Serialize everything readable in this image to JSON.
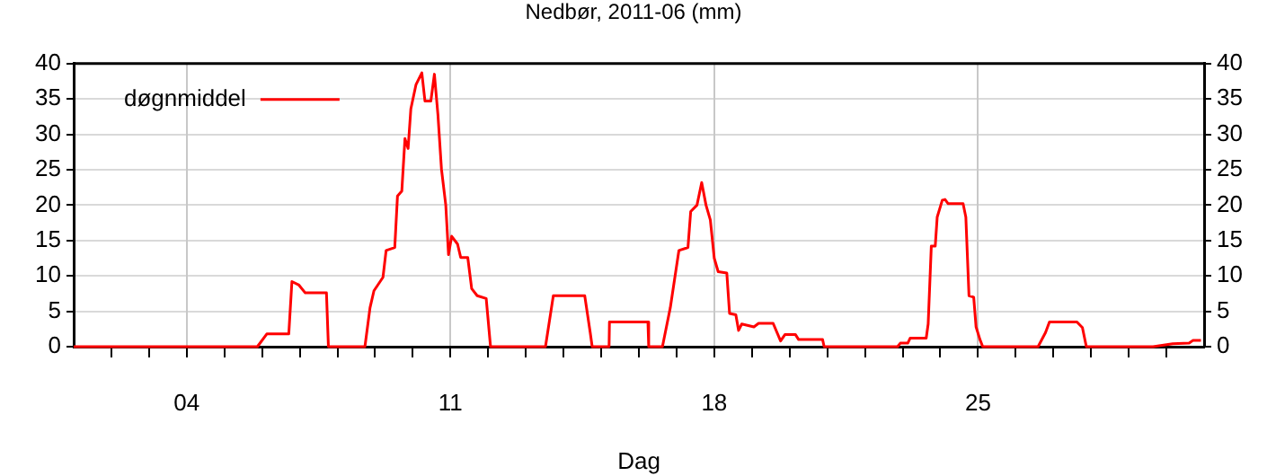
{
  "chart_data": {
    "type": "line",
    "title": "Nedbør, 2011-06 (mm)",
    "xlabel": "Dag",
    "legend": "top left",
    "grid": true,
    "marker": "none",
    "line_style": "solid",
    "xlim": [
      "2011-06-01",
      "2011-07-01"
    ],
    "xticks": [
      {
        "value": "2011-06-02",
        "label": null
      },
      {
        "value": "2011-06-03",
        "label": null
      },
      {
        "value": "2011-06-04",
        "label": "04"
      },
      {
        "value": "2011-06-05",
        "label": null
      },
      {
        "value": "2011-06-06",
        "label": null
      },
      {
        "value": "2011-06-07",
        "label": null
      },
      {
        "value": "2011-06-08",
        "label": null
      },
      {
        "value": "2011-06-09",
        "label": null
      },
      {
        "value": "2011-06-10",
        "label": null
      },
      {
        "value": "2011-06-11",
        "label": "11"
      },
      {
        "value": "2011-06-12",
        "label": null
      },
      {
        "value": "2011-06-13",
        "label": null
      },
      {
        "value": "2011-06-14",
        "label": null
      },
      {
        "value": "2011-06-15",
        "label": null
      },
      {
        "value": "2011-06-16",
        "label": null
      },
      {
        "value": "2011-06-17",
        "label": null
      },
      {
        "value": "2011-06-18",
        "label": "18"
      },
      {
        "value": "2011-06-19",
        "label": null
      },
      {
        "value": "2011-06-20",
        "label": null
      },
      {
        "value": "2011-06-21",
        "label": null
      },
      {
        "value": "2011-06-22",
        "label": null
      },
      {
        "value": "2011-06-23",
        "label": null
      },
      {
        "value": "2011-06-24",
        "label": null
      },
      {
        "value": "2011-06-25",
        "label": "25"
      },
      {
        "value": "2011-06-26",
        "label": null
      },
      {
        "value": "2011-06-27",
        "label": null
      },
      {
        "value": "2011-06-28",
        "label": null
      },
      {
        "value": "2011-06-29",
        "label": null
      },
      {
        "value": "2011-06-30",
        "label": null
      }
    ],
    "ylim": [
      0,
      40
    ],
    "yticks": [
      0,
      5,
      10,
      15,
      20,
      25,
      30,
      35,
      40
    ],
    "y2lim": [
      0,
      40
    ],
    "y2ticks": [
      0,
      5,
      10,
      15,
      20,
      25,
      30,
      35,
      40
    ],
    "x": [
      "2011-06-01T00:00",
      "2011-06-05T21:00",
      "2011-06-06T03:00",
      "2011-06-06T17:00",
      "2011-06-06T19:00",
      "2011-06-06T23:30",
      "2011-06-07T03:30",
      "2011-06-07T17:00",
      "2011-06-07T18:15",
      "2011-06-08T17:30",
      "2011-06-08T20:45",
      "2011-06-08T23:15",
      "2011-06-09T05:00",
      "2011-06-09T07:00",
      "2011-06-09T12:30",
      "2011-06-09T14:15",
      "2011-06-09T17:00",
      "2011-06-09T19:00",
      "2011-06-09T21:00",
      "2011-06-09T22:45",
      "2011-06-10T02:00",
      "2011-06-10T05:45",
      "2011-06-10T07:45",
      "2011-06-10T11:30",
      "2011-06-10T13:45",
      "2011-06-10T16:00",
      "2011-06-10T18:15",
      "2011-06-10T21:00",
      "2011-06-10T22:45",
      "2011-06-11T00:45",
      "2011-06-11T04:30",
      "2011-06-11T06:30",
      "2011-06-11T11:00",
      "2011-06-11T13:30",
      "2011-06-11T17:00",
      "2011-06-11T22:45",
      "2011-06-12T01:30",
      "2011-06-13T12:30",
      "2011-06-13T17:30",
      "2011-06-14T13:30",
      "2011-06-14T17:00",
      "2011-06-14T18:15",
      "2011-06-15T05:00",
      "2011-06-15T05:15",
      "2011-06-16T05:45",
      "2011-06-16T06:15",
      "2011-06-16T15:00",
      "2011-06-16T20:00",
      "2011-06-17T01:30",
      "2011-06-17T07:15",
      "2011-06-17T09:00",
      "2011-06-17T13:00",
      "2011-06-17T16:00",
      "2011-06-17T18:45",
      "2011-06-17T21:30",
      "2011-06-18T00:00",
      "2011-06-18T02:30",
      "2011-06-18T08:00",
      "2011-06-18T09:45",
      "2011-06-18T13:45",
      "2011-06-18T15:30",
      "2011-06-18T17:30",
      "2011-06-19T01:15",
      "2011-06-19T04:15",
      "2011-06-19T13:30",
      "2011-06-19T18:15",
      "2011-06-19T21:00",
      "2011-06-20T03:45",
      "2011-06-20T05:45",
      "2011-06-20T21:00",
      "2011-06-20T22:00",
      "2011-06-22T20:45",
      "2011-06-22T22:30",
      "2011-06-23T03:15",
      "2011-06-23T04:45",
      "2011-06-23T15:00",
      "2011-06-23T16:15",
      "2011-06-23T18:15",
      "2011-06-23T20:45",
      "2011-06-23T22:00",
      "2011-06-24T01:15",
      "2011-06-24T03:00",
      "2011-06-24T05:00",
      "2011-06-24T14:30",
      "2011-06-24T16:15",
      "2011-06-24T18:15",
      "2011-06-24T21:15",
      "2011-06-24T22:45",
      "2011-06-25T01:15",
      "2011-06-25T03:00",
      "2011-06-26T14:15",
      "2011-06-26T19:00",
      "2011-06-26T21:30",
      "2011-06-27T15:00",
      "2011-06-27T18:30",
      "2011-06-27T21:00",
      "2011-06-29T15:30",
      "2011-06-30T04:00",
      "2011-06-30T14:30",
      "2011-06-30T17:00",
      "2011-06-30T22:00"
    ],
    "series": [
      {
        "name": "døgnmiddel",
        "color": "#ff0000",
        "values": [
          0,
          0,
          1.8,
          1.8,
          9.2,
          8.7,
          7.6,
          7.6,
          0,
          0,
          5.5,
          7.9,
          9.8,
          13.6,
          14,
          21.3,
          22,
          29.4,
          28,
          33.6,
          37,
          38.7,
          34.7,
          34.7,
          38.5,
          32.8,
          25.1,
          20,
          13,
          15.6,
          14.5,
          12.6,
          12.6,
          8.2,
          7.2,
          6.8,
          0,
          0,
          7.2,
          7.2,
          2,
          0,
          0,
          3.5,
          3.5,
          0,
          0,
          5.5,
          13.6,
          14,
          19.1,
          20,
          23.2,
          20,
          17.9,
          12.5,
          10.6,
          10.4,
          4.7,
          4.5,
          2.3,
          3.2,
          2.8,
          3.3,
          3.3,
          0.8,
          1.7,
          1.7,
          1,
          1,
          0,
          0,
          0.5,
          0.5,
          1.2,
          1.2,
          3.2,
          14.2,
          14.2,
          18.3,
          20.7,
          20.8,
          20.2,
          20.2,
          18.3,
          7.2,
          7,
          2.8,
          1,
          0,
          0,
          2,
          3.5,
          3.5,
          2.7,
          0,
          0,
          0.4,
          0.5,
          0.9,
          0.9
        ]
      }
    ]
  }
}
